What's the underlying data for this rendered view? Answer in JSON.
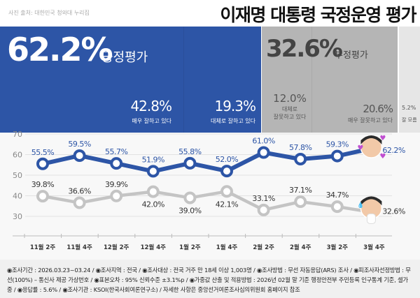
{
  "header": {
    "title": "이재명 대통령 국정운영 평가",
    "source": "사진 출처: 대한민국 청와대 누리집"
  },
  "summary": {
    "positive": {
      "value": "62.2%",
      "label": "긍정평가",
      "breakdown": [
        {
          "value": "42.8%",
          "label": "매우 잘하고 있다"
        },
        {
          "value": "19.3%",
          "label": "대체로 잘하고 있다"
        }
      ]
    },
    "negative": {
      "value": "32.6%",
      "label": "부정평가",
      "breakdown": [
        {
          "value": "12.0%",
          "label1": "대체로",
          "label2": "잘못하고 있다"
        },
        {
          "value": "20.6%",
          "label": "매우 잘못하고 있다"
        }
      ]
    },
    "dontknow": {
      "value": "5.2%",
      "label": "잘 모름"
    },
    "colors": {
      "positive": "#2d55a6",
      "negative": "#b5b5b5",
      "dontknow": "#e6e6e6"
    }
  },
  "chart_data": {
    "type": "line",
    "categories": [
      "11월 2주",
      "11월 4주",
      "12월 2주",
      "12월 4주",
      "1월 2주",
      "1월 4주",
      "2월 2주",
      "2월 4주",
      "3월 2주",
      "3월 4주"
    ],
    "yticks": [
      70,
      60,
      50,
      40,
      30
    ],
    "ylim": [
      30,
      70
    ],
    "grid": true,
    "series": [
      {
        "values": [
          55.5,
          59.5,
          55.7,
          51.9,
          55.8,
          52.0,
          61.0,
          57.8,
          59.3,
          62.2
        ],
        "labels": [
          "55.5%",
          "59.5%",
          "55.7%",
          "51.9%",
          "55.8%",
          "52.0%",
          "61.0%",
          "57.8%",
          "59.3%",
          "62.2%"
        ],
        "color": "#2d55a6"
      },
      {
        "values": [
          39.8,
          36.6,
          39.9,
          42.0,
          39.0,
          42.1,
          33.1,
          37.1,
          34.7,
          32.6
        ],
        "labels": [
          "39.8%",
          "36.6%",
          "39.9%",
          "42.0%",
          "39.0%",
          "42.1%",
          "33.1%",
          "37.1%",
          "34.7%",
          "32.6%"
        ],
        "color": "#c4c4c4"
      }
    ]
  },
  "footer": {
    "text": "◉조사기간 : 2026.03.23~03.24 / ◉조사지역 : 전국 / ◉조사대상 : 전국 거주 만 18세 이상 1,003명 / ◉조사방법 : 무선 자동응답(ARS) 조사 / ◉피조사자선정방법 : 무선(100%) – 통신사 제공 가상번호 / ◉표본오차 : 95% 신뢰수준 ±3.1%p / ◉가중값 산출 및 적용방법 : 2026년 02월 말 기준 행정안전부 주민등록 인구통계 기준, 셀가중 / ◉응답률 : 5.6% / ◉조사기관 : KSOI(한국사회여론연구소) / 자세한 사항은 중앙선거여론조사심의위원회 홈페이지 참조"
  }
}
